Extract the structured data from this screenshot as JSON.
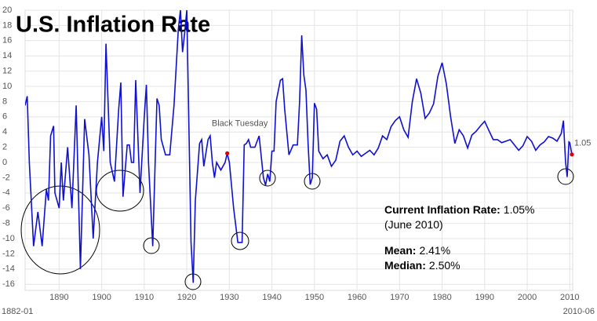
{
  "chart_data": {
    "type": "line",
    "title": "U.S. Inflation Rate",
    "x_start_label": "1882-01",
    "x_end_label": "2010-06",
    "color": "#1010d0",
    "grid": true,
    "xlim": [
      1882,
      2010.5
    ],
    "xticks": [
      1890,
      1900,
      1910,
      1920,
      1930,
      1940,
      1950,
      1960,
      1970,
      1980,
      1990,
      2000,
      2010
    ],
    "ylim": [
      -16.8,
      20
    ],
    "yticks": [
      -16,
      -14,
      -12,
      -10,
      -8,
      -6,
      -4,
      -2,
      0,
      2,
      4,
      6,
      8,
      10,
      12,
      14,
      16,
      18,
      20
    ],
    "x": [
      1882,
      1882.5,
      1883,
      1884,
      1885,
      1886,
      1887,
      1887.5,
      1888,
      1888.7,
      1889,
      1890,
      1890.5,
      1891,
      1892,
      1893,
      1894,
      1895,
      1896,
      1897,
      1898,
      1899,
      1900,
      1900.5,
      1901,
      1902,
      1903,
      1904,
      1904.5,
      1905,
      1906,
      1906.5,
      1907,
      1907.5,
      1908,
      1909,
      1910,
      1910.5,
      1911,
      1912,
      1913,
      1913.5,
      1914,
      1915,
      1916,
      1917,
      1918,
      1918.5,
      1919,
      1919.5,
      1920,
      1921,
      1921.5,
      1922,
      1923,
      1923.5,
      1924,
      1925,
      1925.5,
      1926,
      1926.5,
      1927,
      1928,
      1929,
      1929.5,
      1930,
      1931,
      1932,
      1933,
      1933.5,
      1934,
      1934.5,
      1935,
      1936,
      1937,
      1938,
      1938.5,
      1939,
      1939.5,
      1940,
      1940.5,
      1941,
      1942,
      1942.5,
      1943,
      1944,
      1945,
      1946,
      1946.5,
      1947,
      1947.5,
      1948,
      1948.5,
      1949,
      1949.5,
      1950,
      1950.5,
      1951,
      1952,
      1953,
      1954,
      1955,
      1956,
      1957,
      1958,
      1959,
      1960,
      1961,
      1962,
      1963,
      1964,
      1965,
      1966,
      1967,
      1968,
      1969,
      1970,
      1971,
      1972,
      1973,
      1974,
      1975,
      1976,
      1977,
      1978,
      1979,
      1980,
      1981,
      1982,
      1983,
      1984,
      1985,
      1986,
      1987,
      1988,
      1989,
      1990,
      1991,
      1992,
      1993,
      1994,
      1995,
      1996,
      1997,
      1998,
      1999,
      2000,
      2001,
      2002,
      2003,
      2004,
      2005,
      2006,
      2007,
      2008,
      2008.5,
      2009,
      2009.4,
      2009.8,
      2010,
      2010.5
    ],
    "values": [
      7.5,
      8.7,
      0,
      -11,
      -6.5,
      -11,
      -3.5,
      -5,
      3.5,
      4.8,
      -4,
      -6,
      0,
      -5,
      2,
      -6,
      7.5,
      -14,
      5.7,
      1,
      -10,
      0,
      6,
      1.5,
      15.6,
      0,
      -2.5,
      7,
      10.5,
      -4.5,
      2.3,
      2.3,
      0,
      0,
      10.8,
      -4,
      6,
      10.2,
      0,
      -11,
      8.4,
      7.5,
      3,
      1,
      1,
      7.5,
      17.5,
      20,
      14.5,
      17,
      20,
      -10.5,
      -15.8,
      -5,
      2.5,
      3,
      -0.5,
      3,
      3.5,
      0,
      -2,
      0,
      -1,
      0,
      1.2,
      0,
      -6,
      -10.5,
      -10.5,
      2.3,
      2.5,
      3,
      2,
      2,
      3.5,
      -2,
      -3,
      -1.5,
      -2.5,
      1.5,
      1.5,
      8,
      10.8,
      11,
      7,
      1,
      2.3,
      2.3,
      8,
      16.7,
      11.5,
      9.5,
      2.5,
      -2.9,
      -2,
      7.8,
      7,
      1.5,
      0.5,
      1,
      -0.5,
      0.3,
      2.8,
      3.5,
      2,
      1,
      1.5,
      0.8,
      1.2,
      1.6,
      1,
      1.9,
      3.5,
      3,
      4.7,
      5.5,
      6,
      4.3,
      3.3,
      8,
      11,
      9.1,
      5.8,
      6.5,
      7.7,
      11.3,
      13.1,
      10.3,
      6,
      2.5,
      4.3,
      3.5,
      1.9,
      3.6,
      4.1,
      4.8,
      5.4,
      4.2,
      3,
      3,
      2.6,
      2.8,
      3,
      2.3,
      1.6,
      2.2,
      3.4,
      2.8,
      1.6,
      2.3,
      2.7,
      3.4,
      3.2,
      2.8,
      3.8,
      5.5,
      0.1,
      -1.9,
      2.7,
      2.6,
      1.05
    ],
    "highlights": [
      {
        "x": 1929.5,
        "y": 1.2,
        "label": "Black Tuesday"
      },
      {
        "x": 2010.5,
        "y": 1.05,
        "label": "1.05"
      }
    ],
    "stats": [
      {
        "name": "Current Inflation Rate:",
        "value": "1.05%"
      },
      {
        "name": "(June 2010)"
      },
      {
        "name": "Mean:",
        "value": "2.41%"
      },
      {
        "name": "Median:",
        "value": "2.50%"
      }
    ]
  }
}
